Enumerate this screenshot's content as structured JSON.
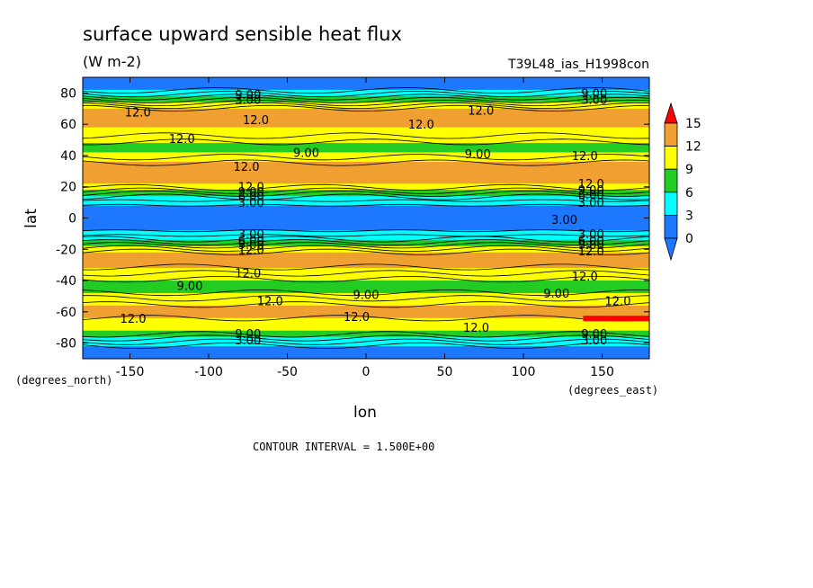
{
  "chart_data": {
    "type": "heatmap",
    "title": "surface upward sensible heat flux",
    "units": "(W m-2)",
    "run_label": "T39L48_ias_H1998con",
    "xlabel": "lon",
    "ylabel": "lat",
    "x_units_label": "(degrees_east)",
    "y_units_label": "(degrees_north)",
    "xlim": [
      -180,
      180
    ],
    "ylim": [
      -90,
      90
    ],
    "x_ticks": [
      -150,
      -100,
      -50,
      0,
      50,
      100,
      150
    ],
    "y_ticks": [
      80,
      60,
      40,
      20,
      0,
      -20,
      -40,
      -60,
      -80
    ],
    "x_tick_labels": [
      "-150",
      "-100",
      "-50",
      "0",
      "50",
      "100",
      "150"
    ],
    "y_tick_labels": [
      "80",
      "60",
      "40",
      "20",
      "0",
      "-20",
      "-40",
      "-60",
      "-80"
    ],
    "contour_interval_text": "CONTOUR INTERVAL = 1.500E+00",
    "colorbar": {
      "levels": [
        0,
        3,
        6,
        9,
        12,
        15
      ],
      "labels": [
        "0",
        "3",
        "6",
        "9",
        "12",
        "15"
      ],
      "colors": [
        "#1e78ff",
        "#00ffff",
        "#22cc22",
        "#ffff00",
        "#f0a030",
        "#ff0000"
      ]
    },
    "zonal_profile": {
      "lat": [
        -90,
        -84,
        -80,
        -76,
        -72,
        -69,
        -66,
        -62,
        -58,
        -54,
        -50,
        -46,
        -42,
        -38,
        -34,
        -30,
        -26,
        -22,
        -18,
        -15,
        -12,
        -9,
        -6,
        -3,
        0,
        3,
        6,
        9,
        12,
        15,
        18,
        22,
        26,
        30,
        34,
        38,
        42,
        46,
        50,
        54,
        58,
        62,
        66,
        70,
        73,
        76,
        80,
        84,
        90
      ],
      "value": [
        0.5,
        1.5,
        4,
        6.5,
        9,
        10.5,
        11.5,
        12.5,
        13,
        11.5,
        10,
        8.2,
        7.8,
        9.5,
        11,
        12.5,
        13,
        12.2,
        9.5,
        7,
        5,
        3.2,
        2.5,
        2.2,
        2,
        2.2,
        2.5,
        3.2,
        5,
        7,
        9.5,
        12,
        13,
        13.2,
        12.5,
        11,
        9,
        8,
        9.5,
        11,
        12,
        12.6,
        13,
        12.2,
        9.5,
        7,
        4,
        1.5,
        0.5
      ]
    },
    "contour_labels": [
      {
        "text": "9.00",
        "lon": -75,
        "lat": 79
      },
      {
        "text": "3.00",
        "lon": -75,
        "lat": 76
      },
      {
        "text": "12.0",
        "lon": -145,
        "lat": 68
      },
      {
        "text": "12.0",
        "lon": -70,
        "lat": 63
      },
      {
        "text": "12.0",
        "lon": 35,
        "lat": 60
      },
      {
        "text": "12.0",
        "lon": 73,
        "lat": 69
      },
      {
        "text": "9.00",
        "lon": 145,
        "lat": 80
      },
      {
        "text": "3.00",
        "lon": 145,
        "lat": 76
      },
      {
        "text": "12.0",
        "lon": -117,
        "lat": 51
      },
      {
        "text": "9.00",
        "lon": -38,
        "lat": 42
      },
      {
        "text": "9.00",
        "lon": 71,
        "lat": 41
      },
      {
        "text": "12.0",
        "lon": 139,
        "lat": 40
      },
      {
        "text": "12.0",
        "lon": -76,
        "lat": 33
      },
      {
        "text": "12.0",
        "lon": -73,
        "lat": 20
      },
      {
        "text": "9.00",
        "lon": -73,
        "lat": 17
      },
      {
        "text": "6.00",
        "lon": -73,
        "lat": 14
      },
      {
        "text": "3.00",
        "lon": -73,
        "lat": 10
      },
      {
        "text": "12.0",
        "lon": 143,
        "lat": 22
      },
      {
        "text": "9.00",
        "lon": 143,
        "lat": 18
      },
      {
        "text": "6.00",
        "lon": 143,
        "lat": 15
      },
      {
        "text": "3.00",
        "lon": 143,
        "lat": 10
      },
      {
        "text": "3.00",
        "lon": 126,
        "lat": -1
      },
      {
        "text": "3.00",
        "lon": -73,
        "lat": -10
      },
      {
        "text": "6.00",
        "lon": -73,
        "lat": -14
      },
      {
        "text": "9.00",
        "lon": -73,
        "lat": -17
      },
      {
        "text": "12.0",
        "lon": -73,
        "lat": -20
      },
      {
        "text": "3.00",
        "lon": 143,
        "lat": -10
      },
      {
        "text": "6.00",
        "lon": 143,
        "lat": -14
      },
      {
        "text": "9.00",
        "lon": 143,
        "lat": -17
      },
      {
        "text": "12.0",
        "lon": 143,
        "lat": -21
      },
      {
        "text": "12.0",
        "lon": -75,
        "lat": -35
      },
      {
        "text": "12.0",
        "lon": 139,
        "lat": -37
      },
      {
        "text": "9.00",
        "lon": -112,
        "lat": -43
      },
      {
        "text": "9.00",
        "lon": 0,
        "lat": -49
      },
      {
        "text": "9.00",
        "lon": 121,
        "lat": -48
      },
      {
        "text": "12.0",
        "lon": -61,
        "lat": -53
      },
      {
        "text": "12.0",
        "lon": 160,
        "lat": -53
      },
      {
        "text": "12.0",
        "lon": -148,
        "lat": -64
      },
      {
        "text": "12.0",
        "lon": -6,
        "lat": -63
      },
      {
        "text": "12.0",
        "lon": 70,
        "lat": -70
      },
      {
        "text": "9.00",
        "lon": -75,
        "lat": -74
      },
      {
        "text": "3.00",
        "lon": -75,
        "lat": -78
      },
      {
        "text": "9.00",
        "lon": 145,
        "lat": -74
      },
      {
        "text": "3.00",
        "lon": 145,
        "lat": -78
      }
    ],
    "grid": false,
    "legend": "right"
  }
}
